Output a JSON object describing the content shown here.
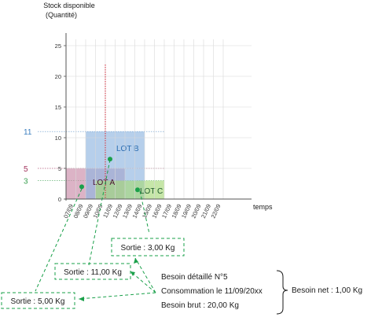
{
  "chart_data": {
    "type": "scatter",
    "title": "",
    "ylabel_line1": "Stock disponible",
    "ylabel_line2": "(Quantité)",
    "xlabel": "temps",
    "ylim": [
      0,
      25
    ],
    "y_ticks": [
      "0",
      "5",
      "10",
      "15",
      "20",
      "25"
    ],
    "x_ticks": [
      "07/09",
      "08/09",
      "09/09",
      "10/09",
      "11/09",
      "12/09",
      "13/09",
      "14/09",
      "15/09",
      "16/09",
      "17/09",
      "18/09",
      "19/09",
      "20/09",
      "21/09",
      "22/09"
    ],
    "reference_levels": [
      {
        "label": "11",
        "value": 11,
        "color": "#3a7ebf"
      },
      {
        "label": "5",
        "value": 5,
        "color": "#a0305a"
      },
      {
        "label": "3",
        "value": 3,
        "color": "#3aa050"
      }
    ],
    "current_date_marker": "11/09",
    "lots": [
      {
        "name": "LOT A",
        "x_start": "07/09",
        "x_end": "13/09",
        "quantity": 5,
        "color": "#c98aa8",
        "label_color": "#4a1030"
      },
      {
        "name": "LOT B",
        "x_start": "09/09",
        "x_end": "15/09",
        "quantity": 11,
        "color": "#8fb5e0",
        "label_color": "#2a6cb0"
      },
      {
        "name": "LOT C",
        "x_start": "10/09",
        "x_end": "17/09",
        "quantity": 3,
        "color": "#a8d87a",
        "label_color": "#1d5a2a"
      }
    ],
    "points": [
      {
        "x": "07/09",
        "y": 2
      },
      {
        "x": "10/09",
        "y": 6.5
      },
      {
        "x": "12/09",
        "y": 1.5
      }
    ]
  },
  "annotations": {
    "sortie_c": "Sortie : 3,00 Kg",
    "sortie_b": "Sortie : 11,00 Kg",
    "sortie_a": "Sortie : 5,00 Kg",
    "besoin_detaille": "Besoin détaillé N°5",
    "consommation": "Consommation le 11/09/20xx",
    "besoin_brut": "Besoin brut : 20,00 Kg",
    "besoin_net": "Besoin net : 1,00 Kg"
  },
  "colors": {
    "grid": "#d8d8d8",
    "axis": "#555555",
    "marker": "#d02030",
    "point": "#1aa04a",
    "dash": "#1aa04a"
  }
}
